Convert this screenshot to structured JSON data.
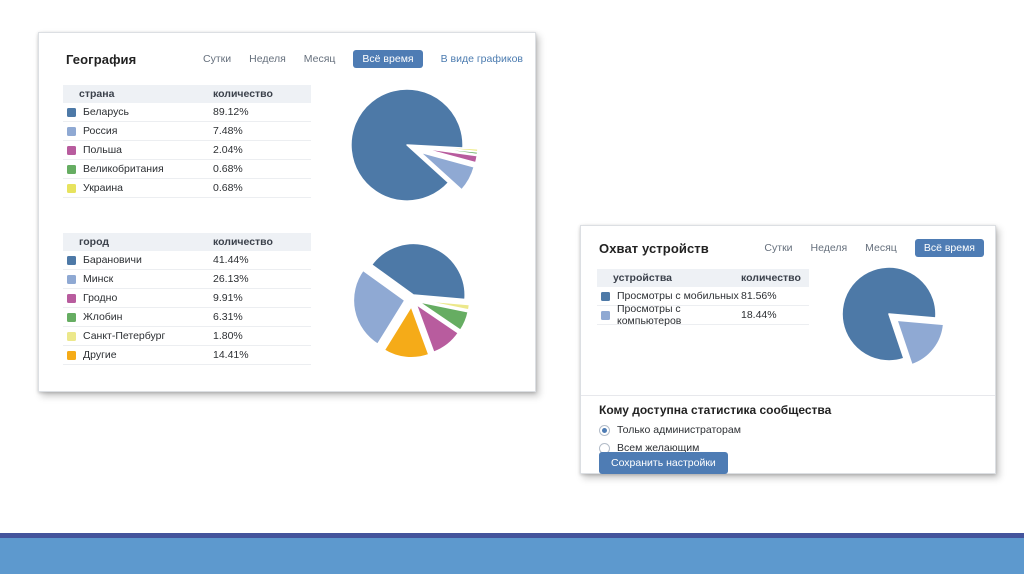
{
  "palette": {
    "accent": "#4e7cb4",
    "dark_blue": "#4d79a7",
    "light_blue": "#8fa9d3",
    "pink": "#b85c9e",
    "green": "#66ad62",
    "yellow": "#e7e35e",
    "pale_yellow": "#ece88b",
    "orange": "#f5ab18"
  },
  "footer": {
    "divider_color": "#44549c",
    "bar_color": "#5d99ce"
  },
  "geo_panel": {
    "title": "География",
    "tabs": [
      {
        "label": "Сутки",
        "active": false
      },
      {
        "label": "Неделя",
        "active": false
      },
      {
        "label": "Месяц",
        "active": false
      },
      {
        "label": "Всё время",
        "active": true
      }
    ],
    "graphs_link": "В виде графиков",
    "country_table": {
      "col_label": "страна",
      "col_value": "количество",
      "rows": [
        {
          "label": "Беларусь",
          "value": "89.12%",
          "color": "#4d79a7"
        },
        {
          "label": "Россия",
          "value": "7.48%",
          "color": "#8fa9d3"
        },
        {
          "label": "Польша",
          "value": "2.04%",
          "color": "#b85c9e"
        },
        {
          "label": "Великобритания",
          "value": "0.68%",
          "color": "#66ad62"
        },
        {
          "label": "Украина",
          "value": "0.68%",
          "color": "#e7e35e"
        }
      ]
    },
    "city_table": {
      "col_label": "город",
      "col_value": "количество",
      "rows": [
        {
          "label": "Барановичи",
          "value": "41.44%",
          "color": "#4d79a7"
        },
        {
          "label": "Минск",
          "value": "26.13%",
          "color": "#8fa9d3"
        },
        {
          "label": "Гродно",
          "value": "9.91%",
          "color": "#b85c9e"
        },
        {
          "label": "Жлобин",
          "value": "6.31%",
          "color": "#66ad62"
        },
        {
          "label": "Санкт-Петербург",
          "value": "1.80%",
          "color": "#ece88b"
        },
        {
          "label": "Другие",
          "value": "14.41%",
          "color": "#f5ab18"
        }
      ]
    }
  },
  "devices_panel": {
    "title": "Охват устройств",
    "tabs": [
      {
        "label": "Сутки",
        "active": false
      },
      {
        "label": "Неделя",
        "active": false
      },
      {
        "label": "Месяц",
        "active": false
      },
      {
        "label": "Всё время",
        "active": true
      }
    ],
    "table": {
      "col_label": "устройства",
      "col_value": "количество",
      "rows": [
        {
          "label": "Просмотры с мобильных",
          "value": "81.56%",
          "color": "#4d79a7"
        },
        {
          "label": "Просмотры с компьютеров",
          "value": "18.44%",
          "color": "#8fa9d3"
        }
      ]
    },
    "settings": {
      "title": "Кому доступна статистика сообщества",
      "options": [
        {
          "label": "Только администраторам",
          "selected": true
        },
        {
          "label": "Всем желающим",
          "selected": false
        }
      ],
      "save_button": "Сохранить настройки"
    }
  },
  "chart_data": [
    {
      "type": "pie",
      "title": "География — страна",
      "unit": "%",
      "start_angle": 93,
      "slices": [
        {
          "label": "Украина",
          "value": 0.68,
          "color": "#e7e35e",
          "explode": 15
        },
        {
          "label": "Великобритания",
          "value": 0.68,
          "color": "#66ad62",
          "explode": 15
        },
        {
          "label": "Польша",
          "value": 2.04,
          "color": "#b85c9e",
          "explode": 15
        },
        {
          "label": "Россия",
          "value": 7.48,
          "color": "#8fa9d3",
          "explode": 15
        },
        {
          "label": "Беларусь",
          "value": 89.12,
          "color": "#4d79a7",
          "explode": 0
        }
      ]
    },
    {
      "type": "pie",
      "title": "География — город",
      "unit": "%",
      "start_angle": 95,
      "slices": [
        {
          "label": "Санкт-Петербург",
          "value": 1.8,
          "color": "#ece88b",
          "explode": 6
        },
        {
          "label": "Жлобин",
          "value": 6.31,
          "color": "#66ad62",
          "explode": 6
        },
        {
          "label": "Гродно",
          "value": 9.91,
          "color": "#b85c9e",
          "explode": 6
        },
        {
          "label": "Другие",
          "value": 14.41,
          "color": "#f5ab18",
          "explode": 7
        },
        {
          "label": "Минск",
          "value": 26.13,
          "color": "#8fa9d3",
          "explode": 7
        },
        {
          "label": "Барановичи",
          "value": 41.44,
          "color": "#4d79a7",
          "explode": 4
        }
      ]
    },
    {
      "type": "pie",
      "title": "Охват устройств",
      "unit": "%",
      "start_angle": 95,
      "slices": [
        {
          "label": "Просмотры с компьютеров",
          "value": 18.44,
          "color": "#8fa9d3",
          "explode": 10
        },
        {
          "label": "Просмотры с мобильных",
          "value": 81.56,
          "color": "#4d79a7",
          "explode": 0
        }
      ]
    }
  ]
}
